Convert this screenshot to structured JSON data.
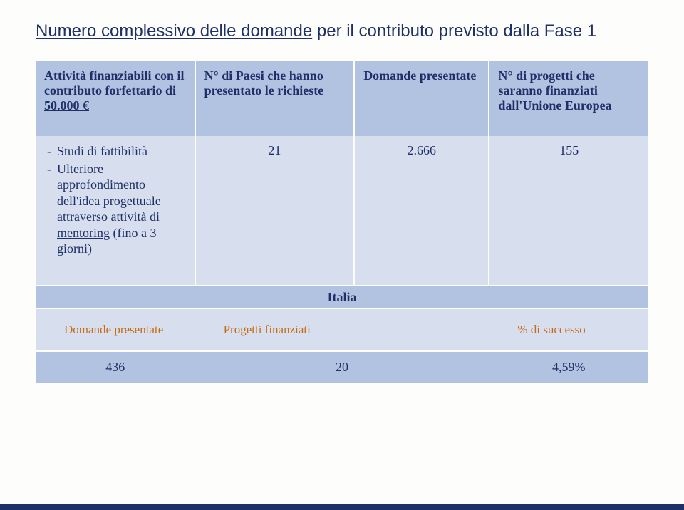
{
  "title": {
    "underlined": "Numero complessivo delle domande",
    "rest": " per il contributo previsto dalla Fase 1"
  },
  "headers": {
    "col1_pre": "Attività finanziabili con il contributo forfettario di ",
    "col1_amount_u": "50.000 €",
    "col2": "N° di Paesi che hanno presentato le richieste",
    "col3": "Domande presentate",
    "col4": "N° di progetti che saranno finanziati dall'Unione Europea"
  },
  "row1": {
    "bullets": {
      "b1": "Studi di fattibilità",
      "b2_pre": "Ulteriore approfondimento dell'idea progettuale attraverso attività di ",
      "b2_u": "mentoring",
      "b2_post": " (fino a 3  giorni)"
    },
    "paesi": "21",
    "domande": "2.666",
    "progetti": "155"
  },
  "italia": {
    "label": "Italia",
    "subheaders": {
      "c1": "Domande presentate",
      "c2": "Progetti finanziati",
      "c3": "% di successo"
    },
    "values": {
      "c1": "436",
      "c2": "20",
      "c3": "4,59%"
    }
  },
  "colors": {
    "header_bg": "#b2c3e2",
    "cell_bg": "#d7dfef",
    "text": "#1f2f68",
    "accent": "#c96b11",
    "page_bg": "#fdfdfb"
  }
}
